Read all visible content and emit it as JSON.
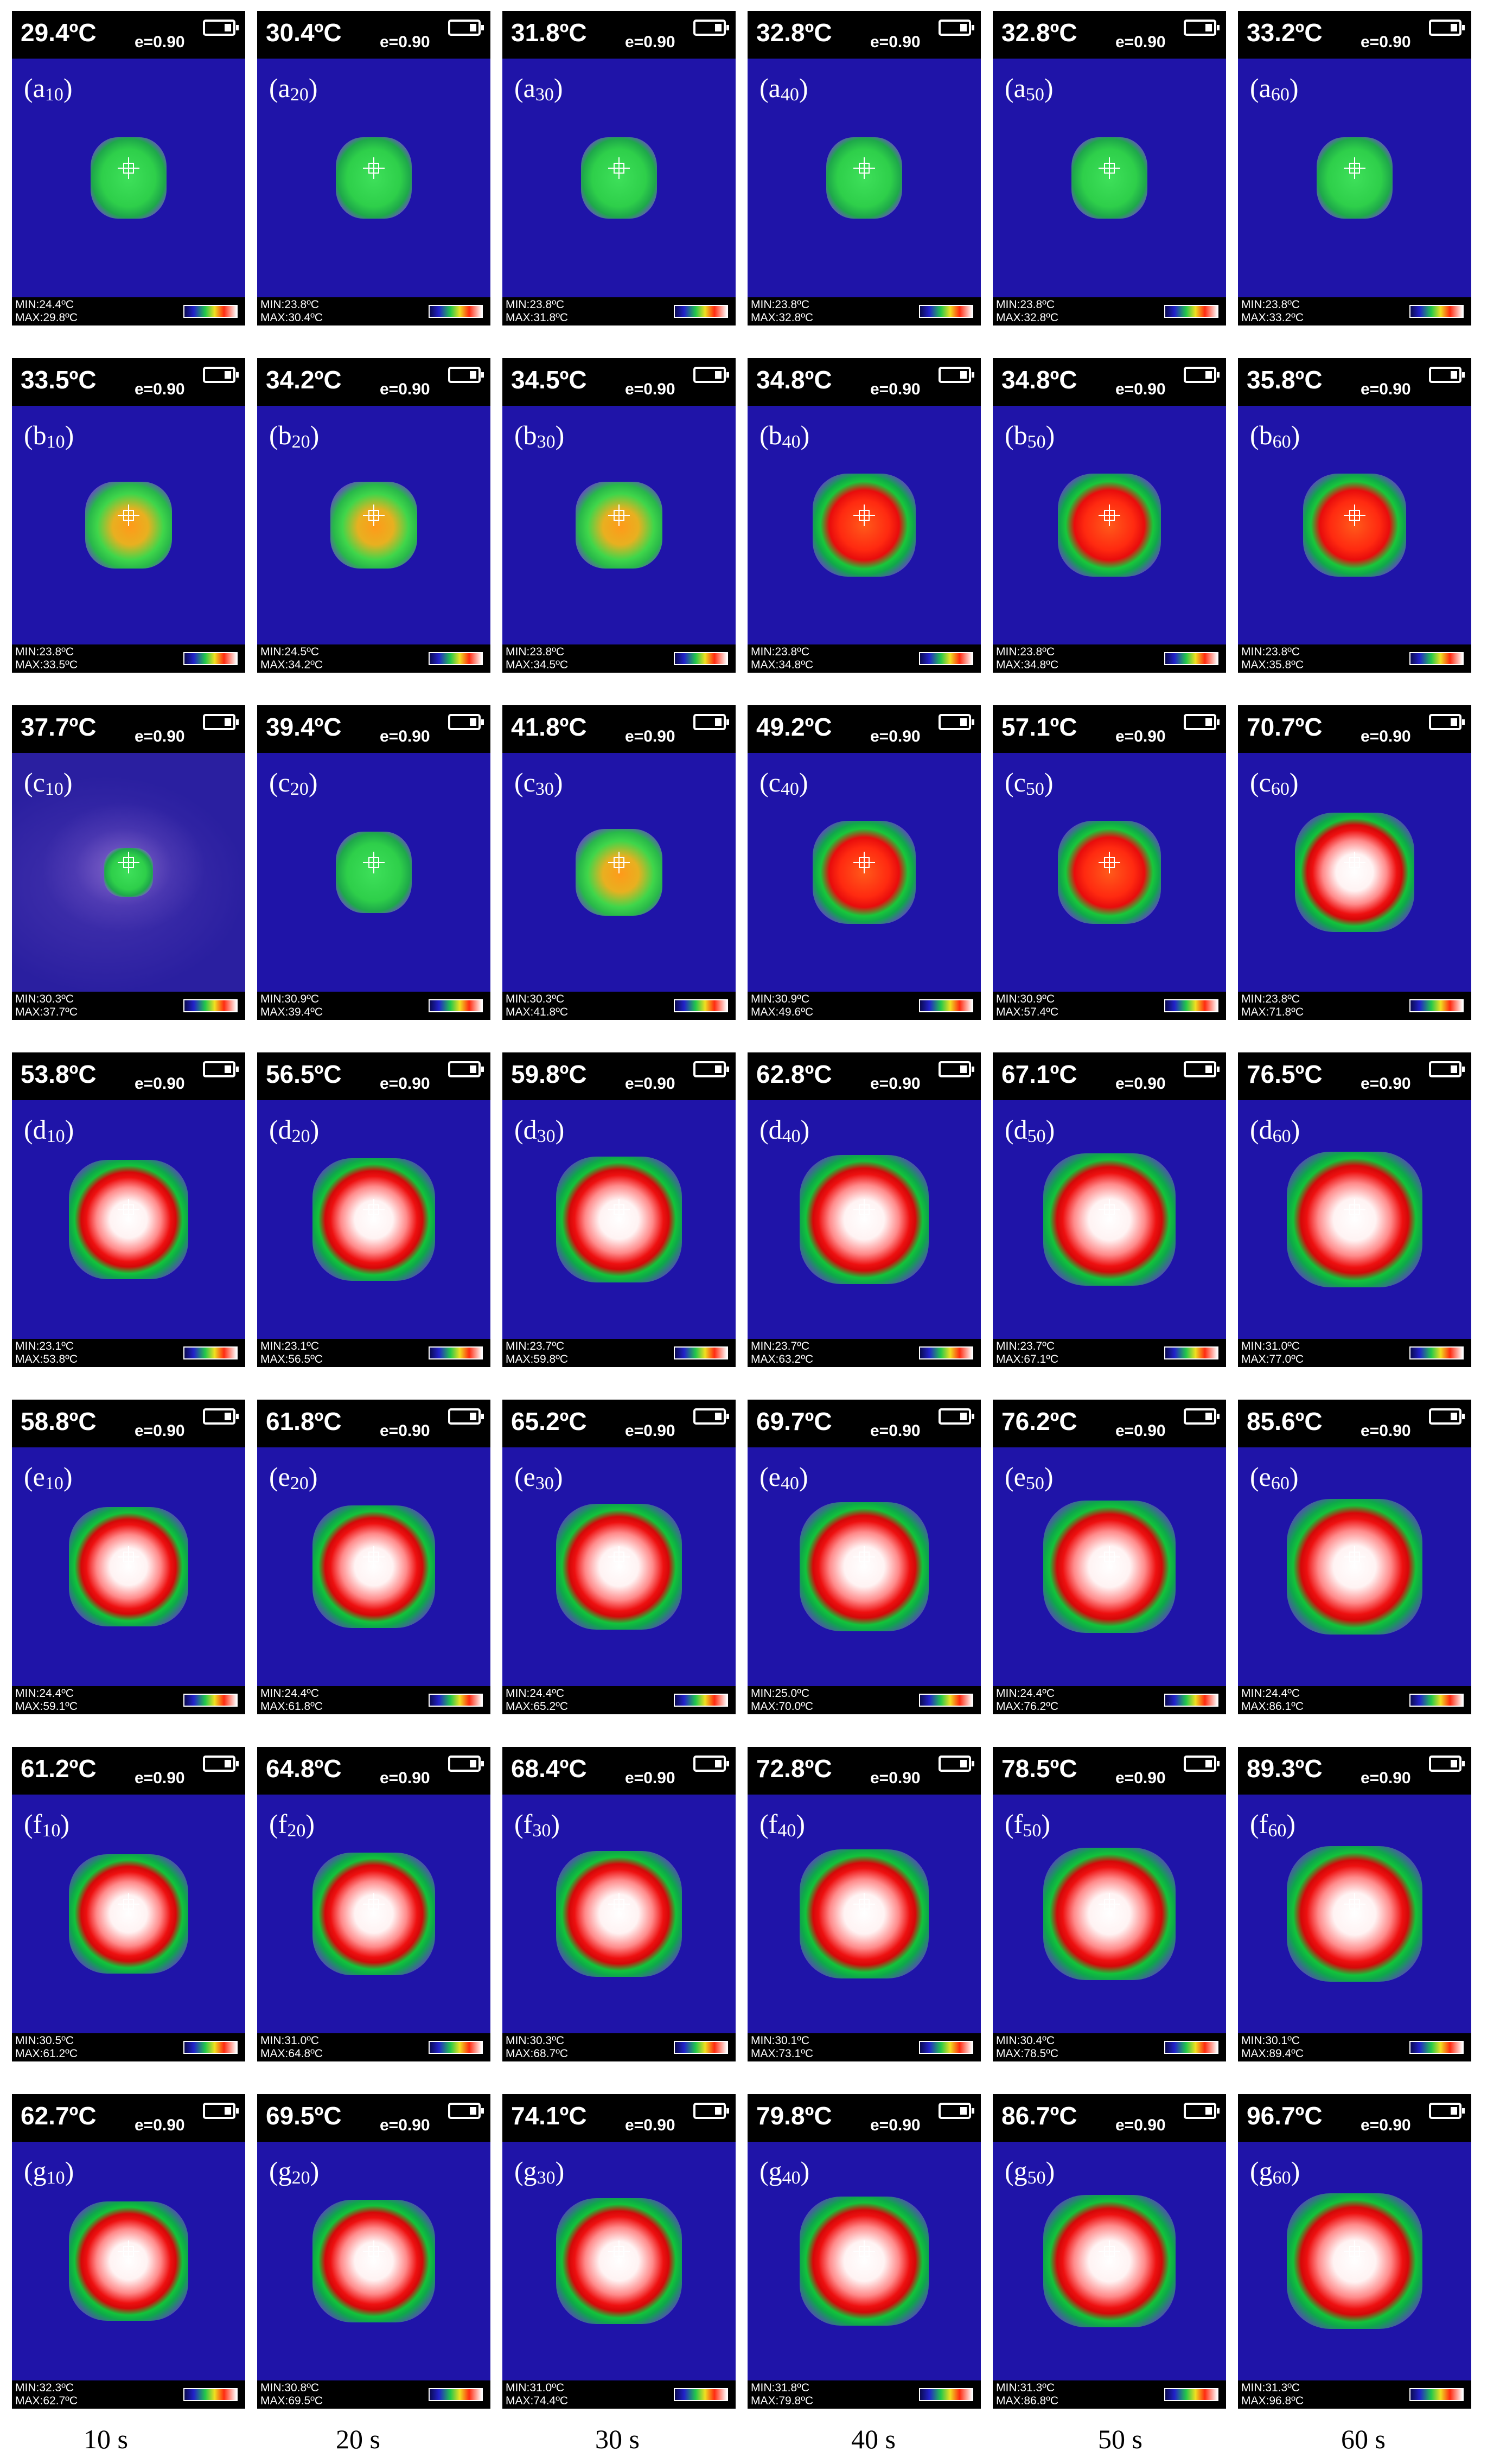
{
  "emissivity": "e=0.90",
  "rows": [
    {
      "letter": "a",
      "cells": [
        {
          "temp": "29.4ºC",
          "sub": "10",
          "min": "MIN:24.4ºC",
          "max": "MAX:29.8ºC"
        },
        {
          "temp": "30.4ºC",
          "sub": "20",
          "min": "MIN:23.8ºC",
          "max": "MAX:30.4ºC"
        },
        {
          "temp": "31.8ºC",
          "sub": "30",
          "min": "MIN:23.8ºC",
          "max": "MAX:31.8ºC"
        },
        {
          "temp": "32.8ºC",
          "sub": "40",
          "min": "MIN:23.8ºC",
          "max": "MAX:32.8ºC"
        },
        {
          "temp": "32.8ºC",
          "sub": "50",
          "min": "MIN:23.8ºC",
          "max": "MAX:32.8ºC"
        },
        {
          "temp": "33.2ºC",
          "sub": "60",
          "min": "MIN:23.8ºC",
          "max": "MAX:33.2ºC"
        }
      ]
    },
    {
      "letter": "b",
      "cells": [
        {
          "temp": "33.5ºC",
          "sub": "10",
          "min": "MIN:23.8ºC",
          "max": "MAX:33.5ºC"
        },
        {
          "temp": "34.2ºC",
          "sub": "20",
          "min": "MIN:24.5ºC",
          "max": "MAX:34.2ºC"
        },
        {
          "temp": "34.5ºC",
          "sub": "30",
          "min": "MIN:23.8ºC",
          "max": "MAX:34.5ºC"
        },
        {
          "temp": "34.8ºC",
          "sub": "40",
          "min": "MIN:23.8ºC",
          "max": "MAX:34.8ºC"
        },
        {
          "temp": "34.8ºC",
          "sub": "50",
          "min": "MIN:23.8ºC",
          "max": "MAX:34.8ºC"
        },
        {
          "temp": "35.8ºC",
          "sub": "60",
          "min": "MIN:23.8ºC",
          "max": "MAX:35.8ºC"
        }
      ]
    },
    {
      "letter": "c",
      "cells": [
        {
          "temp": "37.7ºC",
          "sub": "10",
          "min": "MIN:30.3ºC",
          "max": "MAX:37.7ºC"
        },
        {
          "temp": "39.4ºC",
          "sub": "20",
          "min": "MIN:30.9ºC",
          "max": "MAX:39.4ºC"
        },
        {
          "temp": "41.8ºC",
          "sub": "30",
          "min": "MIN:30.3ºC",
          "max": "MAX:41.8ºC"
        },
        {
          "temp": "49.2ºC",
          "sub": "40",
          "min": "MIN:30.9ºC",
          "max": "MAX:49.6ºC"
        },
        {
          "temp": "57.1ºC",
          "sub": "50",
          "min": "MIN:30.9ºC",
          "max": "MAX:57.4ºC"
        },
        {
          "temp": "70.7ºC",
          "sub": "60",
          "min": "MIN:23.8ºC",
          "max": "MAX:71.8ºC"
        }
      ]
    },
    {
      "letter": "d",
      "cells": [
        {
          "temp": "53.8ºC",
          "sub": "10",
          "min": "MIN:23.1ºC",
          "max": "MAX:53.8ºC"
        },
        {
          "temp": "56.5ºC",
          "sub": "20",
          "min": "MIN:23.1ºC",
          "max": "MAX:56.5ºC"
        },
        {
          "temp": "59.8ºC",
          "sub": "30",
          "min": "MIN:23.7ºC",
          "max": "MAX:59.8ºC"
        },
        {
          "temp": "62.8ºC",
          "sub": "40",
          "min": "MIN:23.7ºC",
          "max": "MAX:63.2ºC"
        },
        {
          "temp": "67.1ºC",
          "sub": "50",
          "min": "MIN:23.7ºC",
          "max": "MAX:67.1ºC"
        },
        {
          "temp": "76.5ºC",
          "sub": "60",
          "min": "MIN:31.0ºC",
          "max": "MAX:77.0ºC"
        }
      ]
    },
    {
      "letter": "e",
      "cells": [
        {
          "temp": "58.8ºC",
          "sub": "10",
          "min": "MIN:24.4ºC",
          "max": "MAX:59.1ºC"
        },
        {
          "temp": "61.8ºC",
          "sub": "20",
          "min": "MIN:24.4ºC",
          "max": "MAX:61.8ºC"
        },
        {
          "temp": "65.2ºC",
          "sub": "30",
          "min": "MIN:24.4ºC",
          "max": "MAX:65.2ºC"
        },
        {
          "temp": "69.7ºC",
          "sub": "40",
          "min": "MIN:25.0ºC",
          "max": "MAX:70.0ºC"
        },
        {
          "temp": "76.2ºC",
          "sub": "50",
          "min": "MIN:24.4ºC",
          "max": "MAX:76.2ºC"
        },
        {
          "temp": "85.6ºC",
          "sub": "60",
          "min": "MIN:24.4ºC",
          "max": "MAX:86.1ºC"
        }
      ]
    },
    {
      "letter": "f",
      "cells": [
        {
          "temp": "61.2ºC",
          "sub": "10",
          "min": "MIN:30.5ºC",
          "max": "MAX:61.2ºC"
        },
        {
          "temp": "64.8ºC",
          "sub": "20",
          "min": "MIN:31.0ºC",
          "max": "MAX:64.8ºC"
        },
        {
          "temp": "68.4ºC",
          "sub": "30",
          "min": "MIN:30.3ºC",
          "max": "MAX:68.7ºC"
        },
        {
          "temp": "72.8ºC",
          "sub": "40",
          "min": "MIN:30.1ºC",
          "max": "MAX:73.1ºC"
        },
        {
          "temp": "78.5ºC",
          "sub": "50",
          "min": "MIN:30.4ºC",
          "max": "MAX:78.5ºC"
        },
        {
          "temp": "89.3ºC",
          "sub": "60",
          "min": "MIN:30.1ºC",
          "max": "MAX:89.4ºC"
        }
      ]
    },
    {
      "letter": "g",
      "cells": [
        {
          "temp": "62.7ºC",
          "sub": "10",
          "min": "MIN:32.3ºC",
          "max": "MAX:62.7ºC"
        },
        {
          "temp": "69.5ºC",
          "sub": "20",
          "min": "MIN:30.8ºC",
          "max": "MAX:69.5ºC"
        },
        {
          "temp": "74.1ºC",
          "sub": "30",
          "min": "MIN:31.0ºC",
          "max": "MAX:74.4ºC"
        },
        {
          "temp": "79.8ºC",
          "sub": "40",
          "min": "MIN:31.8ºC",
          "max": "MAX:79.8ºC"
        },
        {
          "temp": "86.7ºC",
          "sub": "50",
          "min": "MIN:31.3ºC",
          "max": "MAX:86.8ºC"
        },
        {
          "temp": "96.7ºC",
          "sub": "60",
          "min": "MIN:31.3ºC",
          "max": "MAX:96.8ºC"
        }
      ]
    }
  ],
  "time_labels": [
    "10 s",
    "20 s",
    "30 s",
    "40 s",
    "50 s",
    "60 s"
  ],
  "colors": {
    "background": "#1f14a8",
    "palette": [
      "#0a0a50",
      "#2222cc",
      "#22c84a",
      "#f0e020",
      "#ff2a10",
      "#ffffff"
    ]
  }
}
